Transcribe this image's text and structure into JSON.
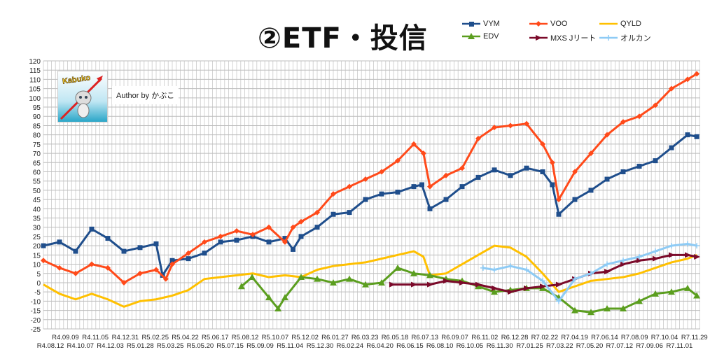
{
  "title": "②ETF・投信",
  "logo_text": "Kabuko",
  "author": "Author by かぶこ",
  "chart_data": {
    "type": "line",
    "title": "②ETF・投信",
    "xlabel": "",
    "ylabel": "",
    "ylim": [
      -25,
      120
    ],
    "yticks": [
      -25,
      -20,
      -15,
      -10,
      -5,
      0,
      5,
      10,
      15,
      20,
      25,
      30,
      35,
      40,
      45,
      50,
      55,
      60,
      65,
      70,
      75,
      80,
      85,
      90,
      95,
      100,
      105,
      110,
      115,
      120
    ],
    "grid": true,
    "legend_position": "top-right",
    "x_labels": [
      "R4.08.12",
      "R4.09.09",
      "R4.10.07",
      "R4.11.05",
      "R4.12.03",
      "R4.12.31",
      "R5.01.28",
      "R5.02.25",
      "R5.03.25",
      "R5.04.22",
      "R5.05.20",
      "R5.06.17",
      "R5.07.15",
      "R5.08.12",
      "R5.09.09",
      "R5.10.07",
      "R5.11.04",
      "R5.12.02",
      "R5.12.30",
      "R6.01.27",
      "R6.02.24",
      "R6.03.23",
      "R6.04.20",
      "R6.05.18",
      "R6.06.15",
      "R6.07.13",
      "R6.08.10",
      "R6.09.07",
      "R6.10.05",
      "R6.11.02",
      "R6.11.30",
      "R6.12.28",
      "R7.01.25",
      "R7.02.22",
      "R7.03.22",
      "R7.04.19",
      "R7.05.20",
      "R7.06.14",
      "R7.07.12",
      "R7.08.09",
      "R7.09.06",
      "R7.10.04",
      "R7.11.01",
      "R7.11.29"
    ],
    "x_note": "x values are positions in label-index units (0 = R4.08.12, each step = 4 weeks)",
    "series": [
      {
        "name": "VYM",
        "color": "#1f4e8c",
        "marker": "square",
        "points": [
          [
            0,
            20
          ],
          [
            1,
            22
          ],
          [
            2,
            17
          ],
          [
            3,
            29
          ],
          [
            4,
            24
          ],
          [
            5,
            17
          ],
          [
            6,
            19
          ],
          [
            7,
            21
          ],
          [
            7.4,
            4
          ],
          [
            8,
            12
          ],
          [
            9,
            13
          ],
          [
            10,
            16
          ],
          [
            11,
            22
          ],
          [
            12,
            23
          ],
          [
            13,
            25
          ],
          [
            14,
            22
          ],
          [
            15,
            24
          ],
          [
            15.5,
            18
          ],
          [
            16,
            25
          ],
          [
            17,
            30
          ],
          [
            18,
            37
          ],
          [
            19,
            38
          ],
          [
            20,
            45
          ],
          [
            21,
            48
          ],
          [
            22,
            49
          ],
          [
            23,
            52
          ],
          [
            23.5,
            53
          ],
          [
            24,
            40
          ],
          [
            25,
            45
          ],
          [
            26,
            52
          ],
          [
            27,
            57
          ],
          [
            28,
            61
          ],
          [
            29,
            58
          ],
          [
            30,
            62
          ],
          [
            31,
            60
          ],
          [
            31.6,
            53
          ],
          [
            32,
            37
          ],
          [
            33,
            45
          ],
          [
            34,
            50
          ],
          [
            35,
            56
          ],
          [
            36,
            60
          ],
          [
            37,
            63
          ],
          [
            38,
            66
          ],
          [
            39,
            73
          ],
          [
            40,
            80
          ],
          [
            40.57,
            79
          ]
        ]
      },
      {
        "name": "VOO",
        "color": "#ff4a1a",
        "marker": "diamond",
        "points": [
          [
            0,
            12
          ],
          [
            1,
            8
          ],
          [
            2,
            5
          ],
          [
            3,
            10
          ],
          [
            4,
            8
          ],
          [
            5,
            0
          ],
          [
            6,
            5
          ],
          [
            7,
            7
          ],
          [
            7.6,
            2
          ],
          [
            8,
            10
          ],
          [
            9,
            16
          ],
          [
            10,
            22
          ],
          [
            11,
            25
          ],
          [
            12,
            28
          ],
          [
            13,
            26
          ],
          [
            14,
            30
          ],
          [
            15,
            22
          ],
          [
            15.5,
            30
          ],
          [
            16,
            33
          ],
          [
            17,
            38
          ],
          [
            18,
            48
          ],
          [
            19,
            52
          ],
          [
            20,
            56
          ],
          [
            21,
            60
          ],
          [
            22,
            66
          ],
          [
            23,
            75
          ],
          [
            23.6,
            70
          ],
          [
            24,
            52
          ],
          [
            25,
            58
          ],
          [
            26,
            62
          ],
          [
            27,
            78
          ],
          [
            28,
            84
          ],
          [
            29,
            85
          ],
          [
            30,
            86
          ],
          [
            31,
            75
          ],
          [
            31.6,
            65
          ],
          [
            32,
            45
          ],
          [
            33,
            60
          ],
          [
            34,
            70
          ],
          [
            35,
            80
          ],
          [
            36,
            87
          ],
          [
            37,
            90
          ],
          [
            38,
            96
          ],
          [
            39,
            105
          ],
          [
            40,
            110
          ],
          [
            40.57,
            113
          ]
        ]
      },
      {
        "name": "QYLD",
        "color": "#ffc000",
        "marker": "none",
        "points": [
          [
            0,
            -1
          ],
          [
            1,
            -6
          ],
          [
            2,
            -9
          ],
          [
            3,
            -6
          ],
          [
            4,
            -9
          ],
          [
            5,
            -13
          ],
          [
            6,
            -10
          ],
          [
            7,
            -9
          ],
          [
            8,
            -7
          ],
          [
            9,
            -4
          ],
          [
            10,
            2
          ],
          [
            11,
            3
          ],
          [
            12,
            4
          ],
          [
            13,
            5
          ],
          [
            14,
            3
          ],
          [
            15,
            4
          ],
          [
            16,
            3
          ],
          [
            17,
            7
          ],
          [
            18,
            9
          ],
          [
            19,
            10
          ],
          [
            20,
            11
          ],
          [
            21,
            13
          ],
          [
            22,
            15
          ],
          [
            23,
            17
          ],
          [
            23.6,
            14
          ],
          [
            24,
            4
          ],
          [
            25,
            5
          ],
          [
            26,
            10
          ],
          [
            27,
            15
          ],
          [
            28,
            20
          ],
          [
            29,
            19
          ],
          [
            30,
            14
          ],
          [
            31,
            5
          ],
          [
            32,
            -5
          ],
          [
            33,
            -2
          ],
          [
            34,
            1
          ],
          [
            35,
            2
          ],
          [
            36,
            3
          ],
          [
            37,
            5
          ],
          [
            38,
            8
          ],
          [
            39,
            11
          ],
          [
            40,
            13
          ],
          [
            40.57,
            15
          ]
        ]
      },
      {
        "name": "EDV",
        "color": "#5b9e1f",
        "marker": "triangle",
        "points": [
          [
            12.3,
            -2
          ],
          [
            12.96,
            3
          ],
          [
            14,
            -8
          ],
          [
            14.57,
            -14
          ],
          [
            15,
            -8
          ],
          [
            16,
            3
          ],
          [
            17,
            2
          ],
          [
            18,
            0
          ],
          [
            19,
            2
          ],
          [
            20,
            -1
          ],
          [
            21,
            0
          ],
          [
            22,
            8
          ],
          [
            23,
            5
          ],
          [
            24,
            4
          ],
          [
            25,
            2
          ],
          [
            26,
            1
          ],
          [
            27,
            -2
          ],
          [
            28,
            -5
          ],
          [
            29,
            -4
          ],
          [
            30,
            -3
          ],
          [
            31,
            -3
          ],
          [
            32,
            -8
          ],
          [
            33,
            -15
          ],
          [
            34,
            -16
          ],
          [
            35,
            -14
          ],
          [
            36,
            -14
          ],
          [
            37,
            -10
          ],
          [
            38,
            -6
          ],
          [
            39,
            -5
          ],
          [
            40,
            -3
          ],
          [
            40.57,
            -7
          ]
        ]
      },
      {
        "name": "MXS Jリート",
        "color": "#7b0a2a",
        "marker": "arrow",
        "points": [
          [
            21.65,
            -1
          ],
          [
            23,
            -1
          ],
          [
            24,
            -1
          ],
          [
            25,
            1
          ],
          [
            26,
            0
          ],
          [
            27,
            -1
          ],
          [
            28,
            -3
          ],
          [
            29,
            -5
          ],
          [
            30,
            -3
          ],
          [
            31,
            -2
          ],
          [
            32,
            -1
          ],
          [
            33,
            2
          ],
          [
            34,
            5
          ],
          [
            35,
            6
          ],
          [
            36,
            10
          ],
          [
            37,
            12
          ],
          [
            38,
            13
          ],
          [
            39,
            15
          ],
          [
            40,
            15
          ],
          [
            40.57,
            14
          ]
        ]
      },
      {
        "name": "オルカン",
        "color": "#8ecbf5",
        "marker": "plus",
        "points": [
          [
            27.3,
            8
          ],
          [
            28,
            7
          ],
          [
            29,
            9
          ],
          [
            30,
            7
          ],
          [
            31,
            1
          ],
          [
            32,
            -10
          ],
          [
            33,
            2
          ],
          [
            34,
            5
          ],
          [
            35,
            10
          ],
          [
            36,
            12
          ],
          [
            37,
            14
          ],
          [
            38,
            17
          ],
          [
            39,
            20
          ],
          [
            40,
            21
          ],
          [
            40.57,
            20
          ]
        ]
      }
    ]
  }
}
